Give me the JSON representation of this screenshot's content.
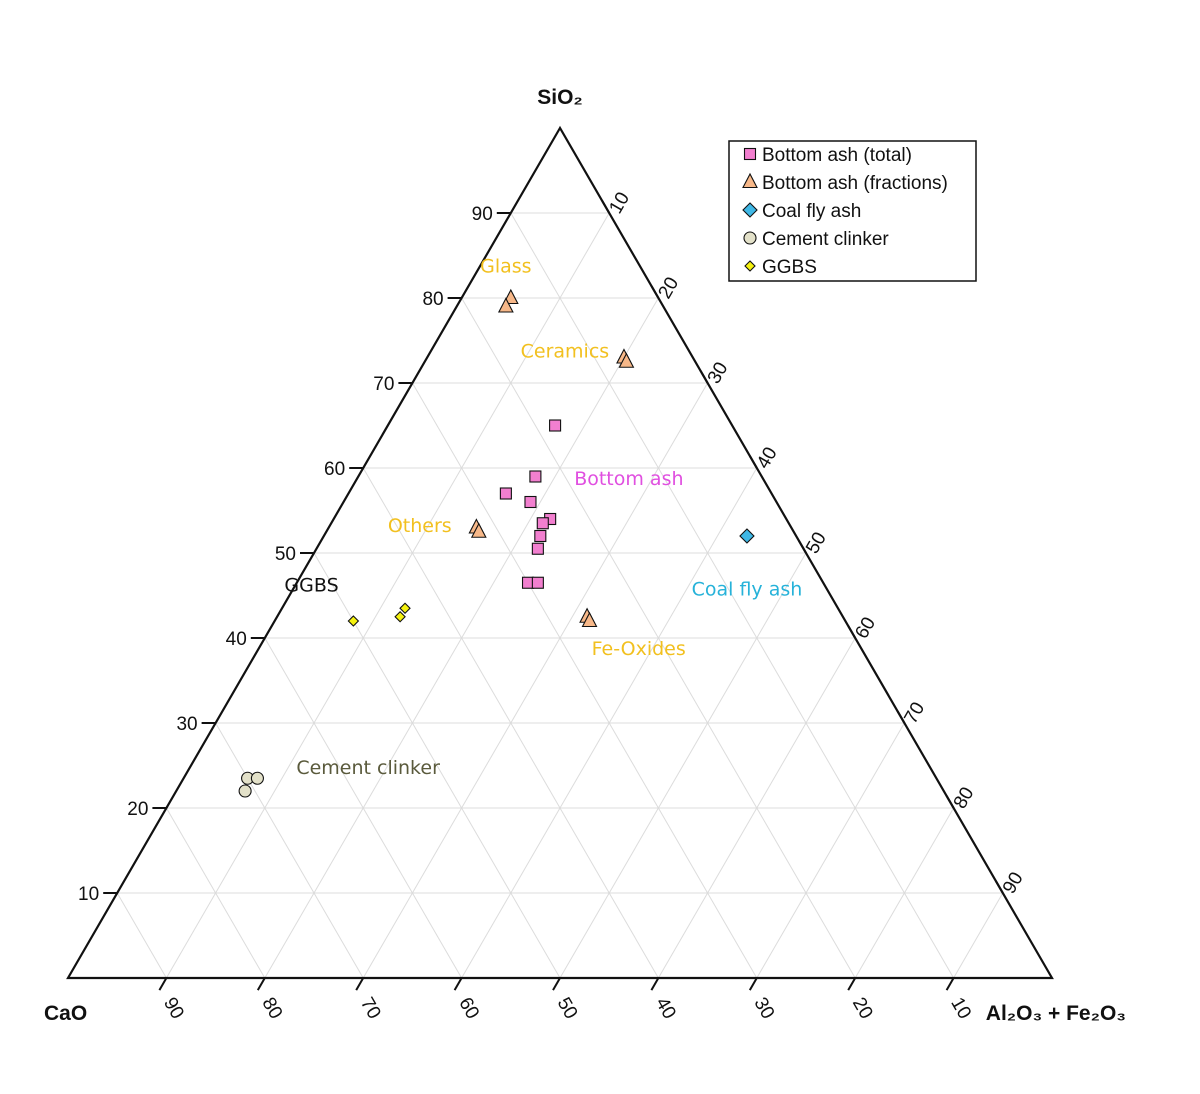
{
  "chart_data": {
    "type": "scatter",
    "subtype": "ternary",
    "axes": {
      "top": {
        "label": "SiO₂"
      },
      "left": {
        "label": "CaO"
      },
      "right": {
        "label": "Al₂O₃ + Fe₂O₃"
      }
    },
    "ticks": [
      "10",
      "20",
      "30",
      "40",
      "50",
      "60",
      "70",
      "80",
      "90"
    ],
    "grid": true,
    "legend_position": "top-right",
    "series": [
      {
        "name": "Bottom ash (total)",
        "marker": "square",
        "color": "#f27fcf",
        "points": [
          {
            "SiO2": 65,
            "CaO": 18,
            "Al2O3_Fe2O3": 17
          },
          {
            "SiO2": 59,
            "CaO": 23,
            "Al2O3_Fe2O3": 18
          },
          {
            "SiO2": 57,
            "CaO": 27,
            "Al2O3_Fe2O3": 16
          },
          {
            "SiO2": 56,
            "CaO": 25,
            "Al2O3_Fe2O3": 19
          },
          {
            "SiO2": 54,
            "CaO": 24,
            "Al2O3_Fe2O3": 22
          },
          {
            "SiO2": 53.5,
            "CaO": 25,
            "Al2O3_Fe2O3": 21.5
          },
          {
            "SiO2": 52,
            "CaO": 26,
            "Al2O3_Fe2O3": 22
          },
          {
            "SiO2": 50.5,
            "CaO": 27,
            "Al2O3_Fe2O3": 22.5
          },
          {
            "SiO2": 46.5,
            "CaO": 30,
            "Al2O3_Fe2O3": 23.5
          },
          {
            "SiO2": 46.5,
            "CaO": 29,
            "Al2O3_Fe2O3": 24.5
          }
        ]
      },
      {
        "name": "Bottom ash (fractions)",
        "marker": "triangle",
        "color": "#f7b889",
        "points": [
          {
            "SiO2": 80,
            "CaO": 15,
            "Al2O3_Fe2O3": 5
          },
          {
            "SiO2": 79,
            "CaO": 16,
            "Al2O3_Fe2O3": 5
          },
          {
            "SiO2": 73,
            "CaO": 7,
            "Al2O3_Fe2O3": 20
          },
          {
            "SiO2": 72.5,
            "CaO": 7,
            "Al2O3_Fe2O3": 20.5
          },
          {
            "SiO2": 53,
            "CaO": 32,
            "Al2O3_Fe2O3": 15
          },
          {
            "SiO2": 52.5,
            "CaO": 32,
            "Al2O3_Fe2O3": 15.5
          },
          {
            "SiO2": 42.5,
            "CaO": 26,
            "Al2O3_Fe2O3": 31.5
          },
          {
            "SiO2": 42,
            "CaO": 26,
            "Al2O3_Fe2O3": 32
          }
        ]
      },
      {
        "name": "Coal fly ash",
        "marker": "diamond",
        "color": "#3fb8e6",
        "points": [
          {
            "SiO2": 52,
            "CaO": 5,
            "Al2O3_Fe2O3": 43
          }
        ]
      },
      {
        "name": "Cement clinker",
        "marker": "circle",
        "color": "#e3e1c9",
        "points": [
          {
            "SiO2": 23.5,
            "CaO": 70,
            "Al2O3_Fe2O3": 6.5
          },
          {
            "SiO2": 23.5,
            "CaO": 69,
            "Al2O3_Fe2O3": 7.5
          },
          {
            "SiO2": 22,
            "CaO": 71,
            "Al2O3_Fe2O3": 7
          }
        ]
      },
      {
        "name": "GGBS",
        "marker": "diamond-small",
        "color": "#f5f20f",
        "points": [
          {
            "SiO2": 43.5,
            "CaO": 44,
            "Al2O3_Fe2O3": 12.5
          },
          {
            "SiO2": 42.5,
            "CaO": 45,
            "Al2O3_Fe2O3": 12.5
          },
          {
            "SiO2": 42,
            "CaO": 50,
            "Al2O3_Fe2O3": 8
          }
        ]
      }
    ],
    "annotations": [
      {
        "text": "Glass",
        "color": "#f2c01f",
        "SiO2": 83,
        "CaO": 14,
        "Al2O3_Fe2O3": 3
      },
      {
        "text": "Ceramics",
        "color": "#f2c01f",
        "SiO2": 73,
        "CaO": 13,
        "Al2O3_Fe2O3": 14
      },
      {
        "text": "Bottom ash",
        "color": "#e04fe0",
        "SiO2": 58,
        "CaO": 14,
        "Al2O3_Fe2O3": 28
      },
      {
        "text": "Others",
        "color": "#f2c01f",
        "SiO2": 52.5,
        "CaO": 38,
        "Al2O3_Fe2O3": 9.5
      },
      {
        "text": "GGBS",
        "color": "#111111",
        "SiO2": 45.5,
        "CaO": 52.5,
        "Al2O3_Fe2O3": 2
      },
      {
        "text": "Coal fly ash",
        "color": "#26b2d9",
        "SiO2": 45,
        "CaO": 8.5,
        "Al2O3_Fe2O3": 46.5
      },
      {
        "text": "Fe-Oxides",
        "color": "#f2c01f",
        "SiO2": 38,
        "CaO": 23,
        "Al2O3_Fe2O3": 39
      },
      {
        "text": "Cement clinker",
        "color": "#5a5a3c",
        "SiO2": 24,
        "CaO": 57.5,
        "Al2O3_Fe2O3": 18.5
      }
    ]
  }
}
